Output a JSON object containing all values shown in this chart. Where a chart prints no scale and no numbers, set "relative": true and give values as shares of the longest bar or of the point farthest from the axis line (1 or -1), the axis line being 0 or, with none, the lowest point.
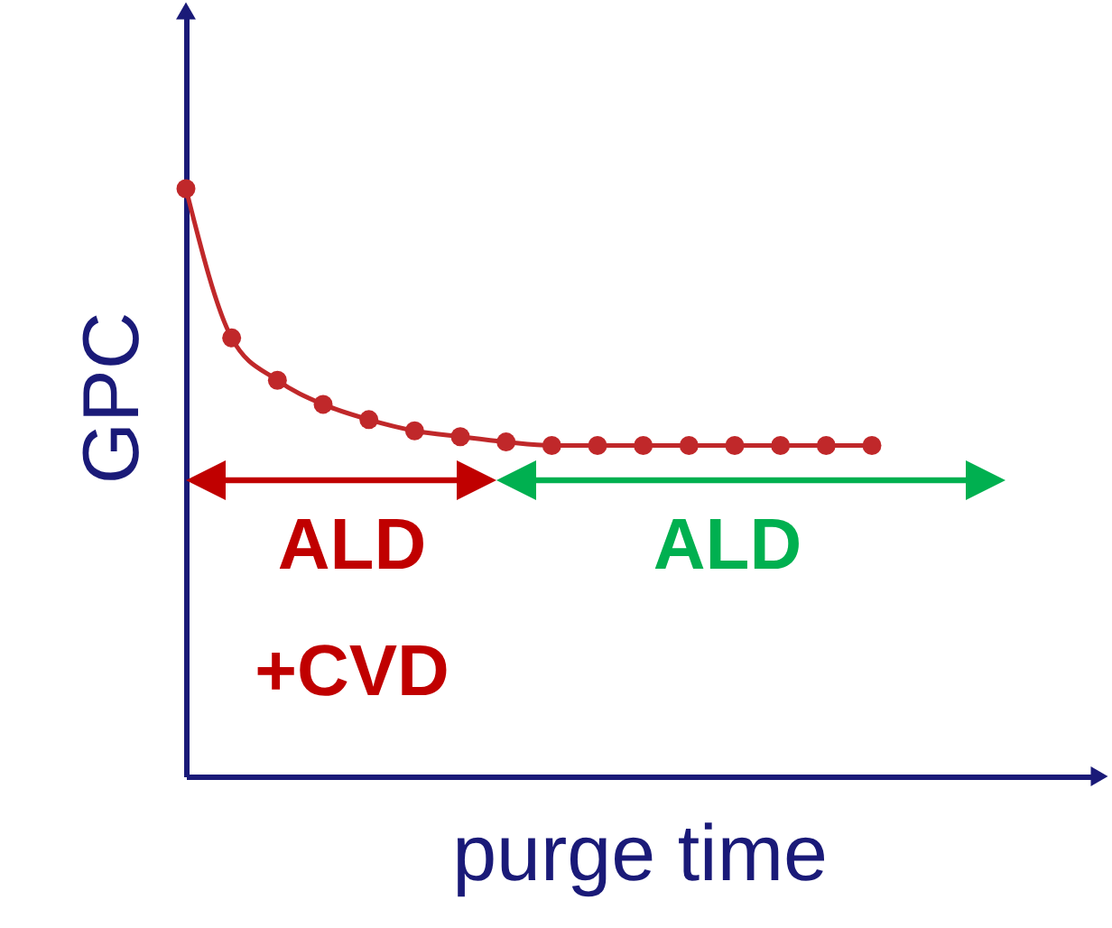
{
  "chart_data": {
    "type": "line",
    "relative": true,
    "xlabel": "purge time",
    "ylabel": "GPC",
    "categories": [
      null,
      null,
      null,
      null,
      null,
      null,
      null,
      null,
      null,
      null,
      null,
      null,
      null,
      null,
      null,
      null
    ],
    "tick_labels": false,
    "series": [
      {
        "color": "#c0282a",
        "marker": "circle",
        "values": [
          1,
          0.746,
          0.674,
          0.633,
          0.607,
          0.588,
          0.578,
          0.569,
          0.563,
          0.563,
          0.563,
          0.563,
          0.563,
          0.563,
          0.563,
          0.563
        ]
      }
    ],
    "annotations": [
      "ALD +CVD",
      "ALD"
    ]
  }
}
